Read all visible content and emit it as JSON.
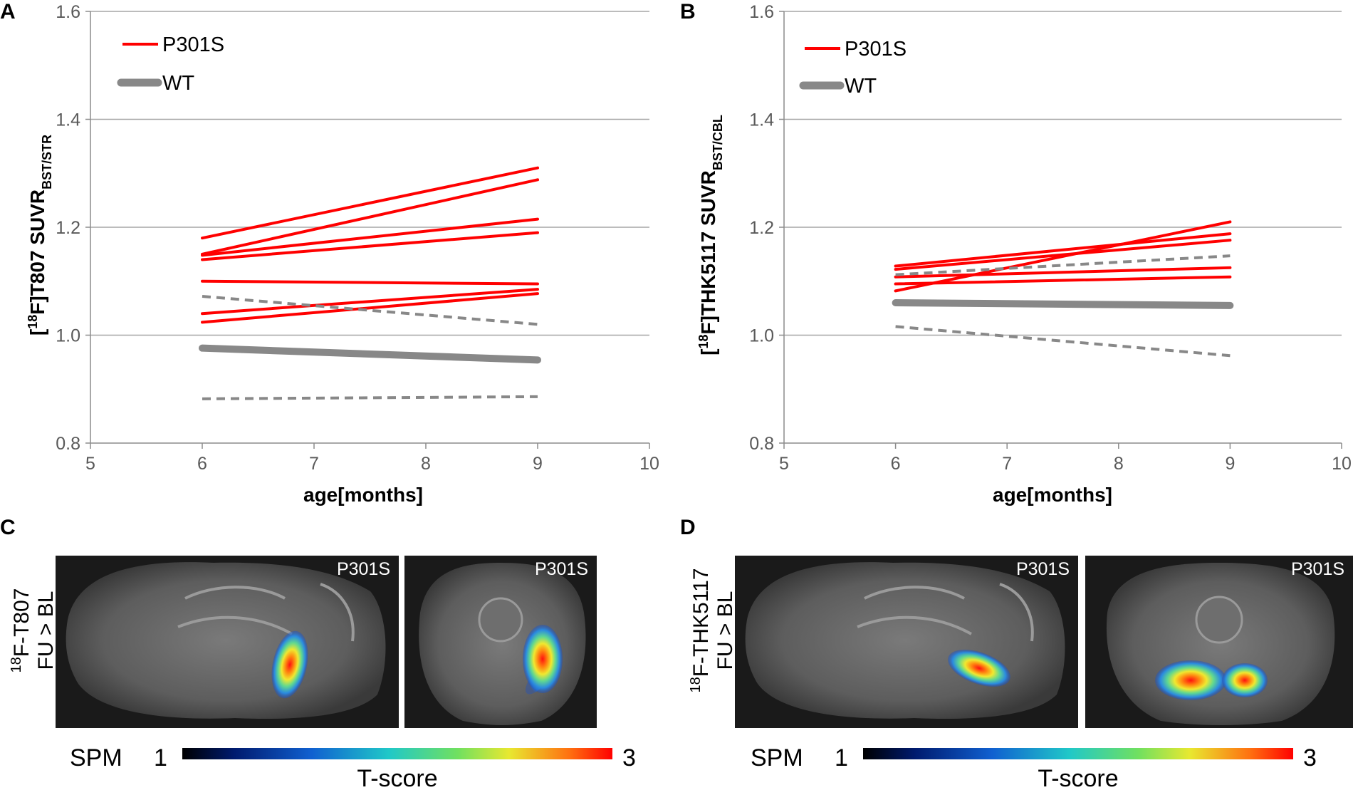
{
  "chart_data": [
    {
      "panel": "A",
      "type": "line",
      "ylabel_main": "[",
      "ylabel_sup": "18",
      "ylabel_mid": "F]T807 SUVR",
      "ylabel_sub": "BST/STR",
      "xlabel": "age[months]",
      "xlim": [
        5,
        10
      ],
      "ylim": [
        0.8,
        1.6
      ],
      "xticks": [
        "5",
        "6",
        "7",
        "8",
        "9",
        "10"
      ],
      "yticks": [
        "0.8",
        "1.0",
        "1.2",
        "1.4",
        "1.6"
      ],
      "legend": [
        {
          "label": "P301S",
          "style": "red-thin"
        },
        {
          "label": "WT",
          "style": "gray-thick"
        }
      ],
      "series": [
        {
          "name": "P301S",
          "color": "#ff0000",
          "dash": false,
          "width": 4,
          "x": [
            6,
            9
          ],
          "y": [
            1.18,
            1.31
          ]
        },
        {
          "name": "P301S",
          "color": "#ff0000",
          "dash": false,
          "width": 4,
          "x": [
            6,
            9
          ],
          "y": [
            1.15,
            1.288
          ]
        },
        {
          "name": "P301S",
          "color": "#ff0000",
          "dash": false,
          "width": 4,
          "x": [
            6,
            9
          ],
          "y": [
            1.148,
            1.215
          ]
        },
        {
          "name": "P301S",
          "color": "#ff0000",
          "dash": false,
          "width": 4,
          "x": [
            6,
            9
          ],
          "y": [
            1.14,
            1.19
          ]
        },
        {
          "name": "P301S",
          "color": "#ff0000",
          "dash": false,
          "width": 4,
          "x": [
            6,
            9
          ],
          "y": [
            1.1,
            1.095
          ]
        },
        {
          "name": "P301S",
          "color": "#ff0000",
          "dash": false,
          "width": 4,
          "x": [
            6,
            9
          ],
          "y": [
            1.04,
            1.085
          ]
        },
        {
          "name": "P301S",
          "color": "#ff0000",
          "dash": false,
          "width": 4,
          "x": [
            6,
            9
          ],
          "y": [
            1.024,
            1.077
          ]
        },
        {
          "name": "WT mean",
          "color": "#888888",
          "dash": false,
          "width": 10,
          "x": [
            6,
            9
          ],
          "y": [
            0.976,
            0.954
          ]
        },
        {
          "name": "WT range upper",
          "color": "#888888",
          "dash": true,
          "width": 4,
          "x": [
            6,
            9
          ],
          "y": [
            1.072,
            1.02
          ]
        },
        {
          "name": "WT range lower",
          "color": "#888888",
          "dash": true,
          "width": 4,
          "x": [
            6,
            9
          ],
          "y": [
            0.882,
            0.886
          ]
        }
      ]
    },
    {
      "panel": "B",
      "type": "line",
      "ylabel_main": "[",
      "ylabel_sup": "18",
      "ylabel_mid": "F]THK5117 SUVR",
      "ylabel_sub": "BST/CBL",
      "xlabel": "age[months]",
      "xlim": [
        5,
        10
      ],
      "ylim": [
        0.8,
        1.6
      ],
      "xticks": [
        "5",
        "6",
        "7",
        "8",
        "9",
        "10"
      ],
      "yticks": [
        "0.8",
        "1.0",
        "1.2",
        "1.4",
        "1.6"
      ],
      "legend": [
        {
          "label": "P301S",
          "style": "red-thin"
        },
        {
          "label": "WT",
          "style": "gray-thick"
        }
      ],
      "series": [
        {
          "name": "P301S",
          "color": "#ff0000",
          "dash": false,
          "width": 4,
          "x": [
            6,
            9
          ],
          "y": [
            1.128,
            1.188
          ]
        },
        {
          "name": "P301S",
          "color": "#ff0000",
          "dash": false,
          "width": 4,
          "x": [
            6,
            9
          ],
          "y": [
            1.122,
            1.176
          ]
        },
        {
          "name": "P301S",
          "color": "#ff0000",
          "dash": false,
          "width": 4,
          "x": [
            6,
            9
          ],
          "y": [
            1.082,
            1.21
          ]
        },
        {
          "name": "P301S",
          "color": "#ff0000",
          "dash": false,
          "width": 4,
          "x": [
            6,
            9
          ],
          "y": [
            1.108,
            1.125
          ]
        },
        {
          "name": "P301S",
          "color": "#ff0000",
          "dash": false,
          "width": 4,
          "x": [
            6,
            9
          ],
          "y": [
            1.095,
            1.108
          ]
        },
        {
          "name": "WT mean",
          "color": "#888888",
          "dash": false,
          "width": 10,
          "x": [
            6,
            9
          ],
          "y": [
            1.06,
            1.055
          ]
        },
        {
          "name": "WT range upper",
          "color": "#888888",
          "dash": true,
          "width": 4,
          "x": [
            6,
            9
          ],
          "y": [
            1.112,
            1.147
          ]
        },
        {
          "name": "WT range lower",
          "color": "#888888",
          "dash": true,
          "width": 4,
          "x": [
            6,
            9
          ],
          "y": [
            1.016,
            0.962
          ]
        }
      ]
    }
  ],
  "panels": {
    "A": {
      "letter": "A"
    },
    "B": {
      "letter": "B"
    },
    "C": {
      "letter": "C",
      "side_sup": "18",
      "side_line1": "F-T807",
      "side_line2": "FU > BL",
      "images": [
        {
          "label": "P301S"
        },
        {
          "label": "P301S"
        }
      ],
      "colorbar": {
        "spm": "SPM",
        "min": "1",
        "max": "3",
        "title": "T-score"
      }
    },
    "D": {
      "letter": "D",
      "side_sup": "18",
      "side_line1": "F-THK5117",
      "side_line2": "FU > BL",
      "images": [
        {
          "label": "P301S"
        },
        {
          "label": "P301S"
        }
      ],
      "colorbar": {
        "spm": "SPM",
        "min": "1",
        "max": "3",
        "title": "T-score"
      }
    }
  },
  "colors": {
    "p301s": "#ff0000",
    "wt": "#888888",
    "grid": "#a6a6a6",
    "image_bg": "#1a1a1a"
  }
}
